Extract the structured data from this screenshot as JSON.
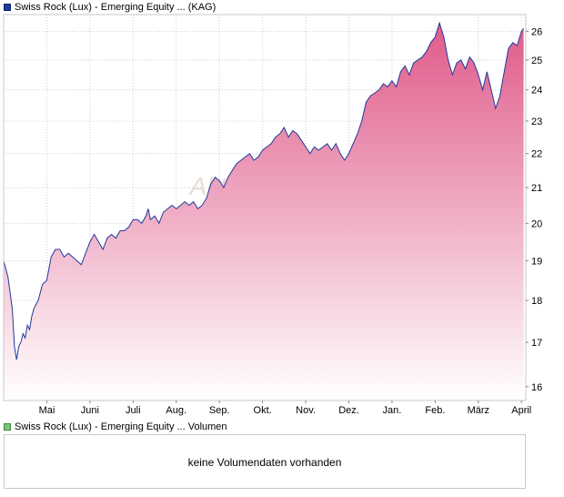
{
  "legend": {
    "price_label": "Swiss Rock (Lux) - Emerging Equity ... (KAG)",
    "volume_label": "Swiss Rock (Lux) - Emerging Equity ... Volumen"
  },
  "watermark": "Akti",
  "volume_panel": {
    "message": "keine Volumendaten vorhanden"
  },
  "colors": {
    "line": "#1f3a9a",
    "fill_top": "#e05a8a",
    "fill_bottom": "#ffffff",
    "grid": "#d0d0d0",
    "frame": "#c8c8c8"
  },
  "chart_data": {
    "type": "area",
    "x_ticks": [
      "Mai",
      "Juni",
      "Juli",
      "Aug.",
      "Sep.",
      "Okt.",
      "Nov.",
      "Dez.",
      "Jan.",
      "Feb.",
      "März",
      "April"
    ],
    "y_ticks": [
      16,
      17,
      18,
      19,
      20,
      21,
      22,
      23,
      24,
      25,
      26
    ],
    "ylim": [
      15.7,
      26.6
    ],
    "xlim": [
      0,
      12.1
    ],
    "y_scale": "log",
    "grid": true,
    "legend_position": "top-left",
    "series": [
      {
        "values": [
          [
            0.0,
            19.0
          ],
          [
            0.1,
            18.6
          ],
          [
            0.2,
            17.8
          ],
          [
            0.25,
            16.9
          ],
          [
            0.3,
            16.6
          ],
          [
            0.35,
            16.9
          ],
          [
            0.4,
            17.0
          ],
          [
            0.45,
            17.2
          ],
          [
            0.5,
            17.1
          ],
          [
            0.55,
            17.4
          ],
          [
            0.6,
            17.3
          ],
          [
            0.65,
            17.6
          ],
          [
            0.7,
            17.8
          ],
          [
            0.8,
            18.0
          ],
          [
            0.9,
            18.4
          ],
          [
            1.0,
            18.5
          ],
          [
            1.1,
            19.1
          ],
          [
            1.2,
            19.3
          ],
          [
            1.3,
            19.3
          ],
          [
            1.4,
            19.1
          ],
          [
            1.5,
            19.2
          ],
          [
            1.6,
            19.1
          ],
          [
            1.7,
            19.0
          ],
          [
            1.8,
            18.9
          ],
          [
            1.9,
            19.2
          ],
          [
            2.0,
            19.5
          ],
          [
            2.1,
            19.7
          ],
          [
            2.2,
            19.5
          ],
          [
            2.3,
            19.3
          ],
          [
            2.4,
            19.6
          ],
          [
            2.5,
            19.7
          ],
          [
            2.6,
            19.6
          ],
          [
            2.7,
            19.8
          ],
          [
            2.8,
            19.8
          ],
          [
            2.9,
            19.9
          ],
          [
            3.0,
            20.1
          ],
          [
            3.1,
            20.1
          ],
          [
            3.2,
            20.0
          ],
          [
            3.3,
            20.2
          ],
          [
            3.35,
            20.4
          ],
          [
            3.4,
            20.1
          ],
          [
            3.5,
            20.2
          ],
          [
            3.6,
            20.0
          ],
          [
            3.7,
            20.3
          ],
          [
            3.8,
            20.4
          ],
          [
            3.9,
            20.5
          ],
          [
            4.0,
            20.4
          ],
          [
            4.1,
            20.5
          ],
          [
            4.2,
            20.6
          ],
          [
            4.3,
            20.5
          ],
          [
            4.4,
            20.6
          ],
          [
            4.5,
            20.4
          ],
          [
            4.6,
            20.5
          ],
          [
            4.7,
            20.7
          ],
          [
            4.8,
            21.1
          ],
          [
            4.9,
            21.3
          ],
          [
            5.0,
            21.2
          ],
          [
            5.1,
            21.0
          ],
          [
            5.2,
            21.3
          ],
          [
            5.3,
            21.5
          ],
          [
            5.4,
            21.7
          ],
          [
            5.5,
            21.8
          ],
          [
            5.6,
            21.9
          ],
          [
            5.7,
            22.0
          ],
          [
            5.8,
            21.8
          ],
          [
            5.9,
            21.9
          ],
          [
            6.0,
            22.1
          ],
          [
            6.1,
            22.2
          ],
          [
            6.2,
            22.3
          ],
          [
            6.3,
            22.5
          ],
          [
            6.4,
            22.6
          ],
          [
            6.5,
            22.8
          ],
          [
            6.6,
            22.5
          ],
          [
            6.7,
            22.7
          ],
          [
            6.8,
            22.6
          ],
          [
            6.9,
            22.4
          ],
          [
            7.0,
            22.2
          ],
          [
            7.1,
            22.0
          ],
          [
            7.2,
            22.2
          ],
          [
            7.3,
            22.1
          ],
          [
            7.4,
            22.2
          ],
          [
            7.5,
            22.3
          ],
          [
            7.6,
            22.1
          ],
          [
            7.7,
            22.3
          ],
          [
            7.8,
            22.0
          ],
          [
            7.9,
            21.8
          ],
          [
            8.0,
            22.0
          ],
          [
            8.1,
            22.3
          ],
          [
            8.2,
            22.6
          ],
          [
            8.3,
            23.0
          ],
          [
            8.4,
            23.6
          ],
          [
            8.5,
            23.8
          ],
          [
            8.6,
            23.9
          ],
          [
            8.7,
            24.0
          ],
          [
            8.8,
            24.2
          ],
          [
            8.9,
            24.1
          ],
          [
            9.0,
            24.3
          ],
          [
            9.1,
            24.1
          ],
          [
            9.2,
            24.6
          ],
          [
            9.3,
            24.8
          ],
          [
            9.4,
            24.5
          ],
          [
            9.5,
            24.9
          ],
          [
            9.6,
            25.0
          ],
          [
            9.7,
            25.1
          ],
          [
            9.8,
            25.3
          ],
          [
            9.9,
            25.6
          ],
          [
            10.0,
            25.8
          ],
          [
            10.1,
            26.3
          ],
          [
            10.2,
            25.8
          ],
          [
            10.3,
            25.0
          ],
          [
            10.4,
            24.5
          ],
          [
            10.5,
            24.9
          ],
          [
            10.6,
            25.0
          ],
          [
            10.7,
            24.7
          ],
          [
            10.8,
            25.1
          ],
          [
            10.9,
            24.9
          ],
          [
            11.0,
            24.5
          ],
          [
            11.1,
            24.0
          ],
          [
            11.2,
            24.6
          ],
          [
            11.3,
            24.0
          ],
          [
            11.4,
            23.4
          ],
          [
            11.5,
            23.8
          ],
          [
            11.6,
            24.6
          ],
          [
            11.7,
            25.4
          ],
          [
            11.8,
            25.6
          ],
          [
            11.9,
            25.5
          ],
          [
            12.0,
            26.0
          ],
          [
            12.05,
            26.1
          ]
        ]
      }
    ]
  }
}
